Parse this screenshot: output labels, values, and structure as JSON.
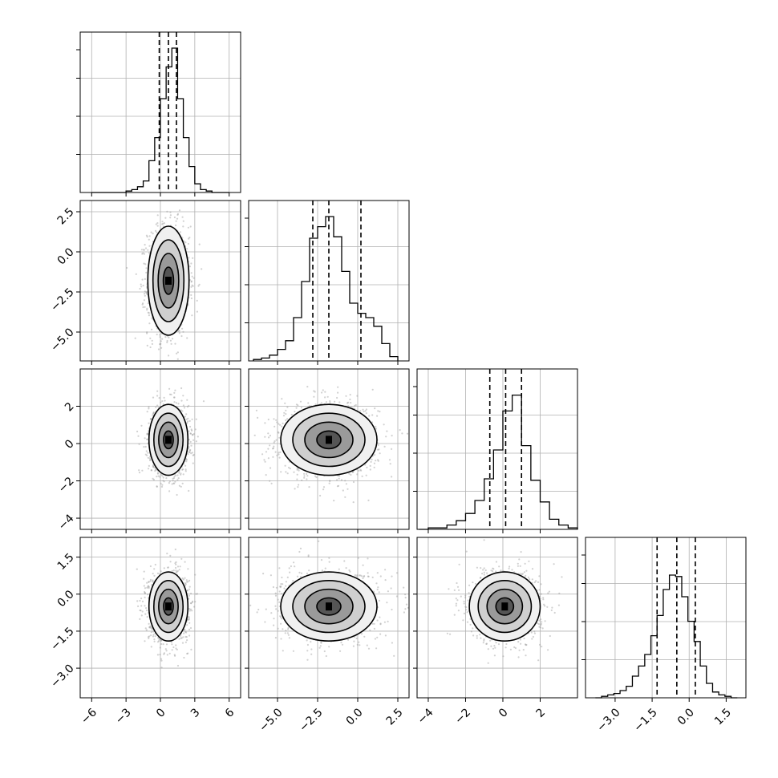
{
  "figure": {
    "title": ""
  },
  "chart_data": {
    "type": "corner",
    "title": "",
    "variables": [
      {
        "name": "",
        "range": [
          -7,
          7
        ],
        "tick_values": [
          -6,
          -3,
          0,
          3,
          6
        ],
        "tick_labels": [
          "−6",
          "−3",
          "0",
          "3",
          "6"
        ],
        "quantiles": [
          -0.1,
          0.7,
          1.4
        ],
        "hist_edges": [
          -6,
          -5.5,
          -5,
          -4.5,
          -4,
          -3.5,
          -3,
          -2.5,
          -2,
          -1.5,
          -1,
          -0.5,
          0,
          0.5,
          1,
          1.5,
          2,
          2.5,
          3,
          3.5,
          4,
          4.5,
          5,
          5.5,
          6
        ],
        "hist_counts": [
          0,
          0,
          0,
          0,
          0,
          0,
          0.01,
          0.02,
          0.04,
          0.08,
          0.22,
          0.38,
          0.65,
          0.87,
          1.0,
          0.65,
          0.38,
          0.18,
          0.06,
          0.02,
          0.01,
          0,
          0,
          0
        ]
      },
      {
        "name": "",
        "range": [
          -6.8,
          3.2
        ],
        "tick_values": [
          -5.0,
          -2.5,
          0.0,
          2.5
        ],
        "tick_labels": [
          "−5.0",
          "−2.5",
          "0.0",
          "2.5"
        ],
        "quantiles": [
          -2.8,
          -1.8,
          0.2
        ],
        "hist_edges": [
          -6.5,
          -6.0,
          -5.5,
          -5.0,
          -4.5,
          -4.0,
          -3.5,
          -3.0,
          -2.5,
          -2.0,
          -1.5,
          -1.0,
          -0.5,
          0.0,
          0.5,
          1.0,
          1.5,
          2.0,
          2.5
        ],
        "hist_counts": [
          0.01,
          0.02,
          0.04,
          0.08,
          0.14,
          0.3,
          0.55,
          0.85,
          0.93,
          1.0,
          0.86,
          0.62,
          0.4,
          0.33,
          0.3,
          0.24,
          0.12,
          0.03
        ],
        "peak_level": 0.86
      },
      {
        "name": "",
        "range": [
          -4.6,
          4.0
        ],
        "tick_values": [
          -4,
          -2,
          0,
          2
        ],
        "tick_labels": [
          "−4",
          "−2",
          "0",
          "2"
        ],
        "quantiles": [
          -0.7,
          0.15,
          1.0
        ],
        "hist_edges": [
          -4.5,
          -4.0,
          -3.5,
          -3.0,
          -2.5,
          -2.0,
          -1.5,
          -1.0,
          -0.5,
          0.0,
          0.5,
          1.0,
          1.5,
          2.0,
          2.5,
          3.0,
          3.5,
          4.0
        ],
        "hist_counts": [
          0,
          0.01,
          0.01,
          0.03,
          0.06,
          0.11,
          0.2,
          0.35,
          0.55,
          0.82,
          0.93,
          0.58,
          0.34,
          0.19,
          0.07,
          0.03,
          0.01
        ],
        "peak_level": 0.8
      },
      {
        "name": "",
        "range": [
          -4.2,
          2.3
        ],
        "tick_values": [
          -3.0,
          -1.5,
          0.0,
          1.5
        ],
        "tick_labels": [
          "−3.0",
          "−1.5",
          "0.0",
          "1.5"
        ],
        "quantiles": [
          -1.3,
          -0.5,
          0.25
        ],
        "hist_edges": [
          -3.8,
          -3.55,
          -3.3,
          -3.05,
          -2.8,
          -2.55,
          -2.3,
          -2.05,
          -1.8,
          -1.55,
          -1.3,
          -1.05,
          -0.8,
          -0.55,
          -0.3,
          -0.05,
          0.2,
          0.45,
          0.7,
          0.95,
          1.2,
          1.45,
          1.7,
          1.95
        ],
        "hist_counts": [
          0,
          0.01,
          0.02,
          0.03,
          0.05,
          0.08,
          0.15,
          0.22,
          0.3,
          0.43,
          0.57,
          0.75,
          0.85,
          0.84,
          0.7,
          0.53,
          0.39,
          0.22,
          0.1,
          0.04,
          0.02,
          0.01,
          0
        ],
        "peak_level": 0.85
      }
    ],
    "pairs": [
      {
        "row": 1,
        "col": 0,
        "center": [
          0.7,
          -1.8
        ],
        "sd": [
          0.9,
          1.7
        ]
      },
      {
        "row": 2,
        "col": 0,
        "center": [
          0.7,
          0.2
        ],
        "sd": [
          0.85,
          0.95
        ]
      },
      {
        "row": 2,
        "col": 1,
        "center": [
          -1.8,
          0.2
        ],
        "sd": [
          1.5,
          0.95
        ]
      },
      {
        "row": 3,
        "col": 0,
        "center": [
          0.7,
          -0.5
        ],
        "sd": [
          0.85,
          0.7
        ]
      },
      {
        "row": 3,
        "col": 1,
        "center": [
          -1.8,
          -0.5
        ],
        "sd": [
          1.5,
          0.7
        ]
      },
      {
        "row": 3,
        "col": 2,
        "center": [
          0.1,
          -0.5
        ],
        "sd": [
          0.95,
          0.7
        ]
      }
    ],
    "contour_levels_sigma": [
      0.5,
      1.0,
      1.5,
      2.0
    ],
    "grid": true
  }
}
